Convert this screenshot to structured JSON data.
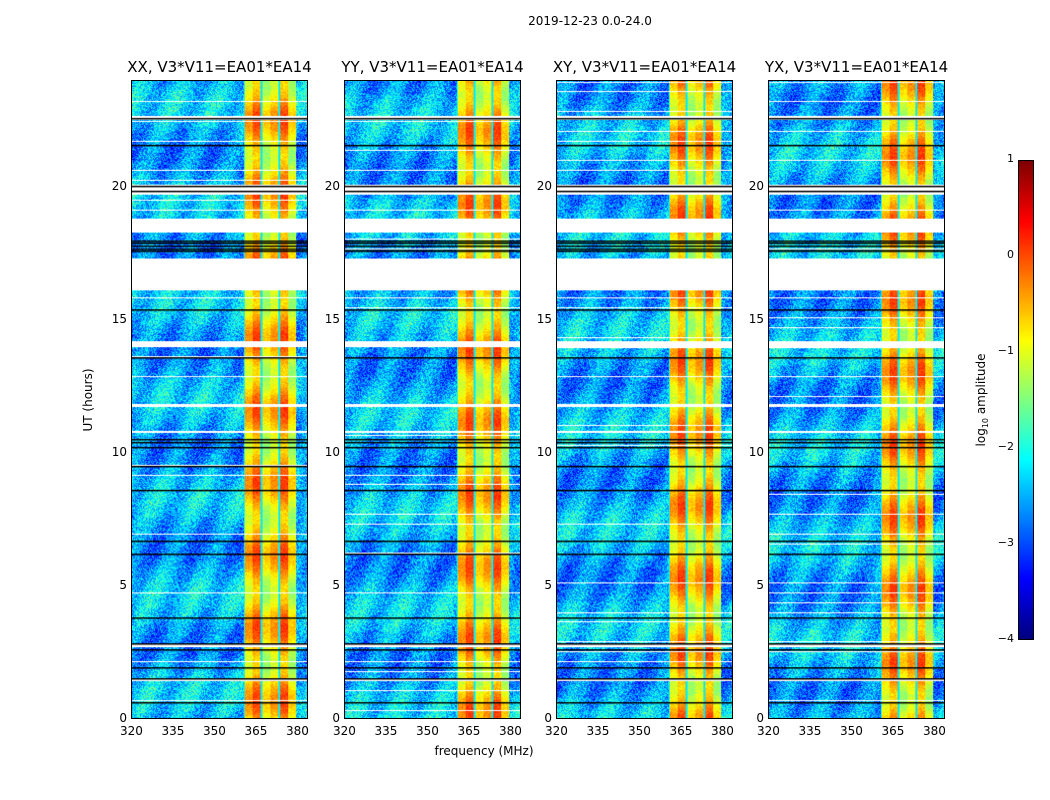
{
  "chart_data": {
    "type": "heatmap",
    "title": "2019-12-23 0.0-24.0",
    "xlabel": "frequency (MHz)",
    "ylabel": "UT (hours)",
    "xlim": [
      320,
      384
    ],
    "ylim": [
      0,
      24
    ],
    "xticks": [
      "320",
      "335",
      "350",
      "365",
      "380"
    ],
    "xtick_values": [
      320,
      335,
      350,
      365,
      380
    ],
    "yticks": [
      "0",
      "5",
      "10",
      "15",
      "20"
    ],
    "ytick_values": [
      0,
      5,
      10,
      15,
      20
    ],
    "panels": [
      {
        "title": "XX, V3*V11=EA01*EA14"
      },
      {
        "title": "YY, V3*V11=EA01*EA14"
      },
      {
        "title": "XY, V3*V11=EA01*EA14"
      },
      {
        "title": "YX, V3*V11=EA01*EA14"
      }
    ],
    "background_log_amplitude": -2.5,
    "rfi_band_mhz": [
      360.5,
      380
    ],
    "rfi_log_amplitude": -0.7,
    "flagged_hours": [
      [
        22.55,
        22.7
      ],
      [
        19.75,
        20.1
      ],
      [
        18.3,
        18.85
      ],
      [
        16.15,
        17.35
      ],
      [
        14.0,
        14.2
      ],
      [
        11.75,
        11.85
      ],
      [
        10.75,
        10.85
      ],
      [
        2.7,
        2.8
      ],
      [
        1.4,
        1.5
      ]
    ],
    "separator_hours": [
      22.6,
      21.6,
      20.05,
      19.85,
      18.0,
      17.9,
      17.8,
      17.7,
      17.6,
      15.4,
      13.6,
      10.5,
      10.4,
      10.2,
      9.5,
      8.6,
      6.7,
      6.2,
      3.8,
      2.8,
      2.6,
      1.9,
      1.5,
      0.6
    ],
    "colorbar": {
      "label": "log10 amplitude",
      "label_main": "log",
      "label_sub": "10",
      "label_rest": " amplitude",
      "range": [
        -4,
        1
      ],
      "ticks": [
        "1",
        "0",
        "−1",
        "−2",
        "−3",
        "−4"
      ],
      "tick_values": [
        1,
        0,
        -1,
        -2,
        -3,
        -4
      ],
      "colormap": "jet"
    }
  }
}
